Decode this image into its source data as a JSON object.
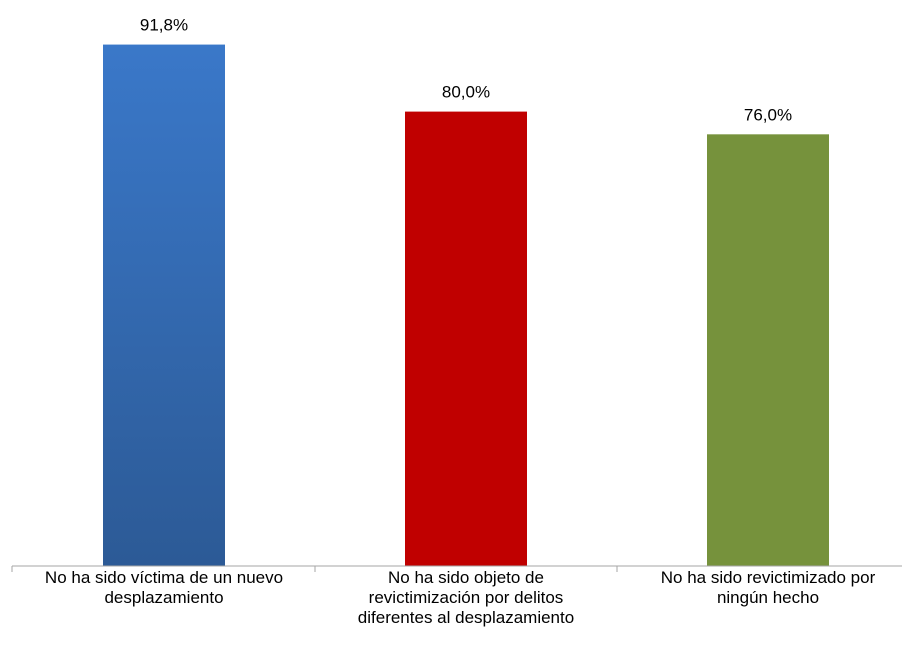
{
  "chart_data": {
    "type": "bar",
    "categories": [
      [
        "No ha sido víctima de un nuevo",
        "desplazamiento"
      ],
      [
        "No ha sido objeto de",
        "revictimización por delitos",
        "diferentes al desplazamiento"
      ],
      [
        "No ha sido revictimizado por",
        "ningún hecho"
      ]
    ],
    "values": [
      91.8,
      80.0,
      76.0
    ],
    "data_labels": [
      "91,8%",
      "80,0%",
      "76,0%"
    ],
    "ylim": [
      0,
      100
    ],
    "grid": false,
    "legend": "none",
    "colors": [
      "#3A78C9",
      "#C00000",
      "#76923C"
    ],
    "colors_bottom": [
      "#2C5A96",
      "#C00000",
      "#76923C"
    ]
  }
}
